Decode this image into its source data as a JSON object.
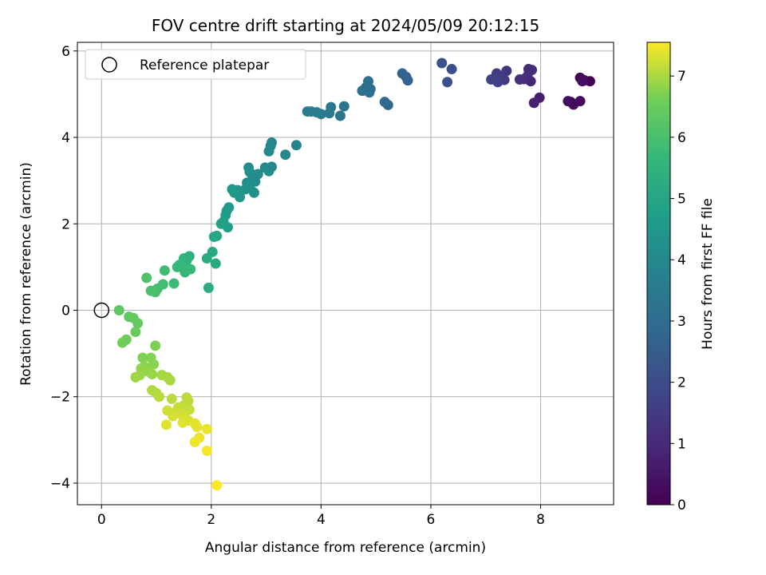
{
  "chart_data": {
    "type": "scatter",
    "title": "FOV centre drift starting at 2024/05/09 20:12:15",
    "xlabel": "Angular distance from reference (arcmin)",
    "ylabel": "Rotation from reference (arcmin)",
    "xlim": [
      -0.44,
      9.33
    ],
    "ylim": [
      -4.5,
      6.2
    ],
    "xticks": [
      0,
      2,
      4,
      6,
      8
    ],
    "yticks": [
      -4,
      -2,
      0,
      2,
      4,
      6
    ],
    "grid": true,
    "legend": {
      "placement": "top-left",
      "entries": [
        "Reference platepar"
      ]
    },
    "reference_point": {
      "x": 0,
      "y": 0,
      "label": "Reference platepar"
    },
    "colorbar": {
      "label": "Hours from first FF file",
      "min": 0,
      "max": 7.55,
      "ticks": [
        0,
        1,
        2,
        3,
        4,
        5,
        6,
        7
      ],
      "colormap": "viridis"
    },
    "points": [
      {
        "x": 8.9,
        "y": 5.3,
        "c": 0.0
      },
      {
        "x": 8.72,
        "y": 5.38,
        "c": 0.05
      },
      {
        "x": 8.8,
        "y": 5.32,
        "c": 0.1
      },
      {
        "x": 8.55,
        "y": 4.82,
        "c": 0.15
      },
      {
        "x": 8.6,
        "y": 4.76,
        "c": 0.2
      },
      {
        "x": 8.72,
        "y": 4.84,
        "c": 0.25
      },
      {
        "x": 8.5,
        "y": 4.84,
        "c": 0.3
      },
      {
        "x": 8.76,
        "y": 5.3,
        "c": 0.35
      },
      {
        "x": 7.98,
        "y": 4.92,
        "c": 0.7
      },
      {
        "x": 7.88,
        "y": 4.8,
        "c": 0.8
      },
      {
        "x": 7.82,
        "y": 5.3,
        "c": 0.9
      },
      {
        "x": 7.78,
        "y": 5.58,
        "c": 1.0
      },
      {
        "x": 7.84,
        "y": 5.56,
        "c": 1.05
      },
      {
        "x": 7.76,
        "y": 5.42,
        "c": 1.1
      },
      {
        "x": 7.7,
        "y": 5.35,
        "c": 1.15
      },
      {
        "x": 7.62,
        "y": 5.34,
        "c": 1.2
      },
      {
        "x": 7.38,
        "y": 5.54,
        "c": 1.4
      },
      {
        "x": 7.34,
        "y": 5.33,
        "c": 1.45
      },
      {
        "x": 7.25,
        "y": 5.42,
        "c": 1.5
      },
      {
        "x": 7.2,
        "y": 5.48,
        "c": 1.55
      },
      {
        "x": 7.15,
        "y": 5.36,
        "c": 1.6
      },
      {
        "x": 7.22,
        "y": 5.28,
        "c": 1.65
      },
      {
        "x": 7.1,
        "y": 5.34,
        "c": 1.7
      },
      {
        "x": 6.38,
        "y": 5.58,
        "c": 2.1
      },
      {
        "x": 6.3,
        "y": 5.28,
        "c": 2.15
      },
      {
        "x": 6.2,
        "y": 5.72,
        "c": 2.2
      },
      {
        "x": 5.58,
        "y": 5.32,
        "c": 2.6
      },
      {
        "x": 5.55,
        "y": 5.4,
        "c": 2.65
      },
      {
        "x": 5.48,
        "y": 5.48,
        "c": 2.7
      },
      {
        "x": 5.22,
        "y": 4.75,
        "c": 2.85
      },
      {
        "x": 5.16,
        "y": 4.82,
        "c": 2.9
      },
      {
        "x": 4.9,
        "y": 5.12,
        "c": 3.0
      },
      {
        "x": 4.86,
        "y": 5.3,
        "c": 3.05
      },
      {
        "x": 4.82,
        "y": 5.16,
        "c": 3.08
      },
      {
        "x": 4.88,
        "y": 5.04,
        "c": 3.1
      },
      {
        "x": 4.75,
        "y": 5.08,
        "c": 3.15
      },
      {
        "x": 4.42,
        "y": 4.72,
        "c": 3.3
      },
      {
        "x": 4.35,
        "y": 4.5,
        "c": 3.35
      },
      {
        "x": 4.18,
        "y": 4.7,
        "c": 3.4
      },
      {
        "x": 4.15,
        "y": 4.56,
        "c": 3.45
      },
      {
        "x": 4.0,
        "y": 4.54,
        "c": 3.5
      },
      {
        "x": 3.92,
        "y": 4.58,
        "c": 3.55
      },
      {
        "x": 3.82,
        "y": 4.6,
        "c": 3.6
      },
      {
        "x": 3.75,
        "y": 4.6,
        "c": 3.62
      },
      {
        "x": 3.55,
        "y": 3.82,
        "c": 3.8
      },
      {
        "x": 3.35,
        "y": 3.6,
        "c": 3.9
      },
      {
        "x": 3.1,
        "y": 3.88,
        "c": 3.95
      },
      {
        "x": 3.08,
        "y": 3.8,
        "c": 3.98
      },
      {
        "x": 3.05,
        "y": 3.68,
        "c": 4.0
      },
      {
        "x": 3.1,
        "y": 3.32,
        "c": 4.02
      },
      {
        "x": 2.98,
        "y": 3.3,
        "c": 4.05
      },
      {
        "x": 3.05,
        "y": 3.22,
        "c": 4.08
      },
      {
        "x": 2.85,
        "y": 3.15,
        "c": 4.1
      },
      {
        "x": 2.8,
        "y": 2.98,
        "c": 4.12
      },
      {
        "x": 2.75,
        "y": 3.05,
        "c": 4.15
      },
      {
        "x": 2.68,
        "y": 3.3,
        "c": 4.18
      },
      {
        "x": 2.7,
        "y": 3.2,
        "c": 4.2
      },
      {
        "x": 2.65,
        "y": 2.95,
        "c": 4.22
      },
      {
        "x": 2.7,
        "y": 2.85,
        "c": 4.25
      },
      {
        "x": 2.78,
        "y": 2.72,
        "c": 4.28
      },
      {
        "x": 2.62,
        "y": 2.8,
        "c": 4.3
      },
      {
        "x": 2.52,
        "y": 2.62,
        "c": 4.4
      },
      {
        "x": 2.48,
        "y": 2.78,
        "c": 4.45
      },
      {
        "x": 2.42,
        "y": 2.72,
        "c": 4.5
      },
      {
        "x": 2.38,
        "y": 2.8,
        "c": 4.55
      },
      {
        "x": 2.32,
        "y": 2.38,
        "c": 4.6
      },
      {
        "x": 2.28,
        "y": 2.3,
        "c": 4.65
      },
      {
        "x": 2.26,
        "y": 2.2,
        "c": 4.7
      },
      {
        "x": 2.3,
        "y": 1.92,
        "c": 4.75
      },
      {
        "x": 2.18,
        "y": 2.0,
        "c": 4.8
      },
      {
        "x": 2.22,
        "y": 2.05,
        "c": 4.85
      },
      {
        "x": 2.1,
        "y": 1.72,
        "c": 5.0
      },
      {
        "x": 2.05,
        "y": 1.7,
        "c": 5.05
      },
      {
        "x": 2.02,
        "y": 1.35,
        "c": 5.1
      },
      {
        "x": 2.08,
        "y": 1.08,
        "c": 5.15
      },
      {
        "x": 1.92,
        "y": 1.2,
        "c": 5.2
      },
      {
        "x": 1.95,
        "y": 0.52,
        "c": 5.3
      },
      {
        "x": 1.6,
        "y": 1.25,
        "c": 5.4
      },
      {
        "x": 1.55,
        "y": 1.15,
        "c": 5.45
      },
      {
        "x": 1.5,
        "y": 1.2,
        "c": 5.5
      },
      {
        "x": 1.45,
        "y": 1.0,
        "c": 5.55
      },
      {
        "x": 1.42,
        "y": 1.05,
        "c": 5.6
      },
      {
        "x": 1.38,
        "y": 1.0,
        "c": 5.65
      },
      {
        "x": 1.52,
        "y": 0.88,
        "c": 5.68
      },
      {
        "x": 1.62,
        "y": 0.95,
        "c": 5.7
      },
      {
        "x": 1.32,
        "y": 0.62,
        "c": 5.8
      },
      {
        "x": 1.15,
        "y": 0.92,
        "c": 5.85
      },
      {
        "x": 1.12,
        "y": 0.6,
        "c": 5.9
      },
      {
        "x": 1.02,
        "y": 0.5,
        "c": 5.95
      },
      {
        "x": 0.98,
        "y": 0.42,
        "c": 6.0
      },
      {
        "x": 0.9,
        "y": 0.45,
        "c": 6.05
      },
      {
        "x": 0.82,
        "y": 0.75,
        "c": 6.1
      },
      {
        "x": 0.32,
        "y": 0.0,
        "c": 6.3
      },
      {
        "x": 0.5,
        "y": -0.15,
        "c": 6.35
      },
      {
        "x": 0.58,
        "y": -0.18,
        "c": 6.4
      },
      {
        "x": 0.66,
        "y": -0.3,
        "c": 6.45
      },
      {
        "x": 0.62,
        "y": -0.5,
        "c": 6.5
      },
      {
        "x": 0.45,
        "y": -0.68,
        "c": 6.55
      },
      {
        "x": 0.38,
        "y": -0.75,
        "c": 6.6
      },
      {
        "x": 0.98,
        "y": -0.82,
        "c": 6.7
      },
      {
        "x": 0.75,
        "y": -1.1,
        "c": 6.72
      },
      {
        "x": 0.9,
        "y": -1.1,
        "c": 6.75
      },
      {
        "x": 0.95,
        "y": -1.25,
        "c": 6.78
      },
      {
        "x": 0.78,
        "y": -1.3,
        "c": 6.8
      },
      {
        "x": 0.72,
        "y": -1.35,
        "c": 6.82
      },
      {
        "x": 0.86,
        "y": -1.42,
        "c": 6.85
      },
      {
        "x": 0.92,
        "y": -1.48,
        "c": 6.88
      },
      {
        "x": 0.7,
        "y": -1.5,
        "c": 6.9
      },
      {
        "x": 0.62,
        "y": -1.55,
        "c": 6.92
      },
      {
        "x": 1.1,
        "y": -1.5,
        "c": 6.95
      },
      {
        "x": 1.2,
        "y": -1.55,
        "c": 6.98
      },
      {
        "x": 1.25,
        "y": -1.62,
        "c": 7.0
      },
      {
        "x": 0.92,
        "y": -1.85,
        "c": 7.02
      },
      {
        "x": 1.0,
        "y": -1.92,
        "c": 7.05
      },
      {
        "x": 1.05,
        "y": -2.0,
        "c": 7.08
      },
      {
        "x": 1.28,
        "y": -2.05,
        "c": 7.1
      },
      {
        "x": 1.55,
        "y": -2.02,
        "c": 7.12
      },
      {
        "x": 1.58,
        "y": -2.1,
        "c": 7.14
      },
      {
        "x": 1.5,
        "y": -2.2,
        "c": 7.16
      },
      {
        "x": 1.4,
        "y": -2.25,
        "c": 7.18
      },
      {
        "x": 1.6,
        "y": -2.3,
        "c": 7.2
      },
      {
        "x": 1.35,
        "y": -2.35,
        "c": 7.22
      },
      {
        "x": 1.2,
        "y": -2.32,
        "c": 7.24
      },
      {
        "x": 1.45,
        "y": -2.4,
        "c": 7.26
      },
      {
        "x": 1.52,
        "y": -2.48,
        "c": 7.28
      },
      {
        "x": 1.3,
        "y": -2.45,
        "c": 7.3
      },
      {
        "x": 1.58,
        "y": -2.55,
        "c": 7.32
      },
      {
        "x": 1.48,
        "y": -2.6,
        "c": 7.34
      },
      {
        "x": 1.18,
        "y": -2.65,
        "c": 7.36
      },
      {
        "x": 1.7,
        "y": -2.62,
        "c": 7.38
      },
      {
        "x": 1.74,
        "y": -2.7,
        "c": 7.4
      },
      {
        "x": 1.92,
        "y": -2.75,
        "c": 7.42
      },
      {
        "x": 1.78,
        "y": -2.95,
        "c": 7.44
      },
      {
        "x": 1.7,
        "y": -3.05,
        "c": 7.46
      },
      {
        "x": 1.92,
        "y": -3.25,
        "c": 7.5
      },
      {
        "x": 2.1,
        "y": -4.05,
        "c": 7.55
      }
    ]
  }
}
